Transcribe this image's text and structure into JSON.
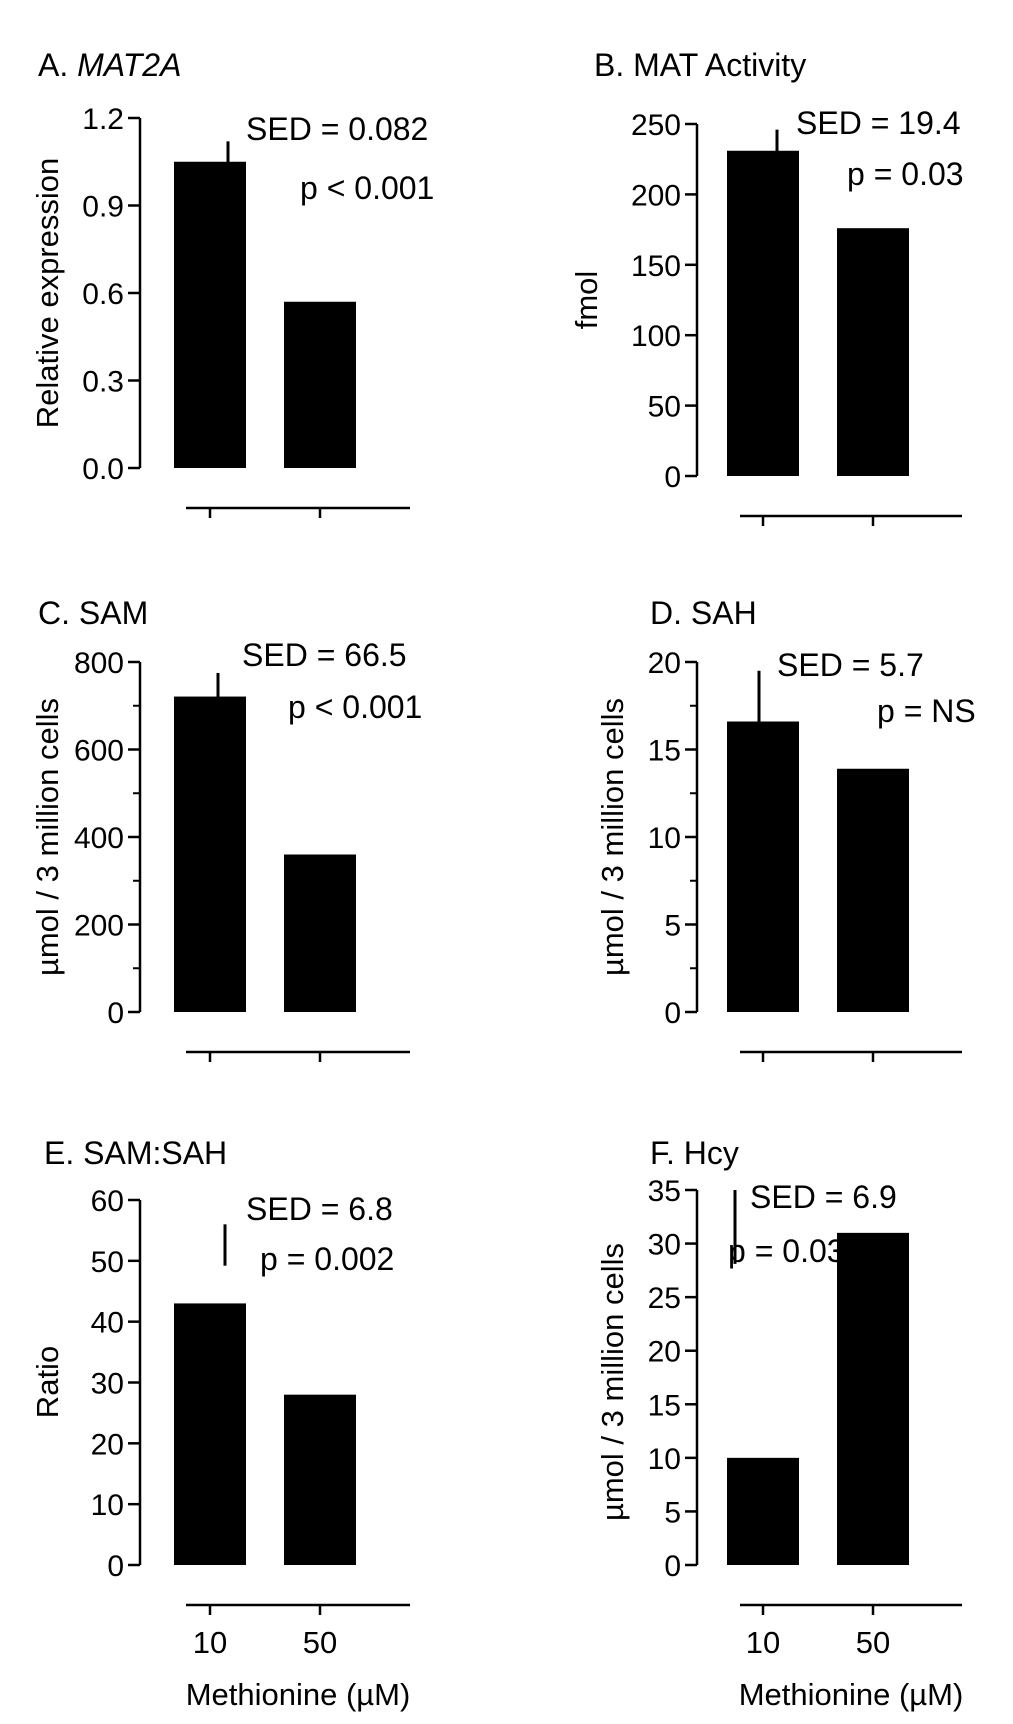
{
  "figure": {
    "xlabel": "Methionine (µM)",
    "categories": [
      "10",
      "50"
    ]
  },
  "chart_data": [
    {
      "type": "bar",
      "panel": "A",
      "title_prefix": "A. ",
      "title_name": "MAT2A",
      "ylabel": "Relative expression",
      "categories": [
        "10",
        "50"
      ],
      "values": [
        1.05,
        0.57
      ],
      "ylim": [
        0,
        1.2
      ],
      "yticks": [
        0,
        0.3,
        0.6,
        0.9,
        1.2
      ],
      "ytick_labels": [
        "0.0",
        "0.3",
        "0.6",
        "0.9",
        "1.2"
      ],
      "minor_ticks": false,
      "sed_value": 0.082,
      "sed_label": "SED = 0.082",
      "p_label": "p < 0.001",
      "show_x_labels": false
    },
    {
      "type": "bar",
      "panel": "B",
      "title_prefix": "B. MAT Activity",
      "title_name": "",
      "ylabel": "fmol",
      "categories": [
        "10",
        "50"
      ],
      "values": [
        231,
        176
      ],
      "ylim": [
        0,
        250
      ],
      "yticks": [
        0,
        50,
        100,
        150,
        200,
        250
      ],
      "ytick_labels": [
        "0",
        "50",
        "100",
        "150",
        "200",
        "250"
      ],
      "minor_ticks": false,
      "sed_value": 19.4,
      "sed_label": "SED = 19.4",
      "p_label": "p = 0.03",
      "show_x_labels": false
    },
    {
      "type": "bar",
      "panel": "C",
      "title_prefix": "C. SAM",
      "title_name": "",
      "ylabel": "µmol / 3 million cells",
      "categories": [
        "10",
        "50"
      ],
      "values": [
        721,
        360
      ],
      "ylim": [
        0,
        800
      ],
      "yticks": [
        0,
        200,
        400,
        600,
        800
      ],
      "ytick_labels": [
        "0",
        "200",
        "400",
        "600",
        "800"
      ],
      "minor_ticks": true,
      "sed_value": 66.5,
      "sed_label": "SED = 66.5",
      "p_label": "p < 0.001",
      "show_x_labels": false
    },
    {
      "type": "bar",
      "panel": "D",
      "title_prefix": "D. SAH",
      "title_name": "",
      "ylabel": "µmol / 3 million cells",
      "categories": [
        "10",
        "50"
      ],
      "values": [
        16.6,
        13.9
      ],
      "ylim": [
        0,
        20
      ],
      "yticks": [
        0,
        5,
        10,
        15,
        20
      ],
      "ytick_labels": [
        "0",
        "5",
        "10",
        "15",
        "20"
      ],
      "minor_ticks": true,
      "sed_value": 5.7,
      "sed_label": "SED = 5.7",
      "p_label": "p = NS",
      "show_x_labels": false
    },
    {
      "type": "bar",
      "panel": "E",
      "title_prefix": "E. SAM:SAH",
      "title_name": "",
      "ylabel": "Ratio",
      "categories": [
        "10",
        "50"
      ],
      "values": [
        43,
        28
      ],
      "ylim": [
        0,
        60
      ],
      "yticks": [
        0,
        10,
        20,
        30,
        40,
        50,
        60
      ],
      "ytick_labels": [
        "0",
        "10",
        "20",
        "30",
        "40",
        "50",
        "60"
      ],
      "minor_ticks": false,
      "sed_value": 6.8,
      "sed_label": "SED = 6.8",
      "p_label": "p = 0.002",
      "show_x_labels": true
    },
    {
      "type": "bar",
      "panel": "F",
      "title_prefix": "F. Hcy",
      "title_name": "",
      "ylabel": "µmol / 3 million cells",
      "categories": [
        "10",
        "50"
      ],
      "values": [
        10,
        31
      ],
      "ylim": [
        0,
        35
      ],
      "yticks": [
        0,
        5,
        10,
        15,
        20,
        25,
        30,
        35
      ],
      "ytick_labels": [
        "0",
        "5",
        "10",
        "15",
        "20",
        "25",
        "30",
        "35"
      ],
      "minor_ticks": false,
      "sed_value": 6.9,
      "sed_label": "SED = 6.9",
      "p_label": "p = 0.03",
      "show_x_labels": true
    }
  ]
}
